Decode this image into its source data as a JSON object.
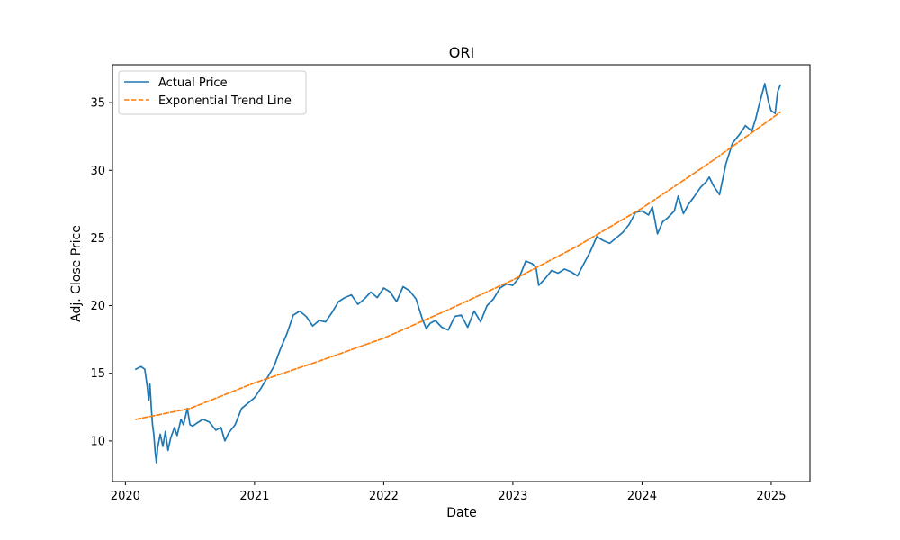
{
  "chart_data": {
    "type": "line",
    "title": "ORI",
    "xlabel": "Date",
    "ylabel": "Adj. Close Price",
    "xlim": [
      2019.9,
      2025.3
    ],
    "ylim": [
      7.0,
      37.8
    ],
    "x_ticks": [
      2020,
      2021,
      2022,
      2023,
      2024,
      2025
    ],
    "x_tick_labels": [
      "2020",
      "2021",
      "2022",
      "2023",
      "2024",
      "2025"
    ],
    "y_ticks": [
      10,
      15,
      20,
      25,
      30,
      35
    ],
    "y_tick_labels": [
      "10",
      "15",
      "20",
      "25",
      "30",
      "35"
    ],
    "grid": false,
    "legend_position": "top-left",
    "colors": {
      "actual": "#1f77b4",
      "trend": "#ff7f0e"
    },
    "series": [
      {
        "name": "Actual Price",
        "style": "solid",
        "color": "#1f77b4",
        "x": [
          2020.08,
          2020.1,
          2020.12,
          2020.15,
          2020.17,
          2020.18,
          2020.19,
          2020.2,
          2020.21,
          2020.22,
          2020.23,
          2020.24,
          2020.25,
          2020.27,
          2020.29,
          2020.31,
          2020.33,
          2020.35,
          2020.38,
          2020.4,
          2020.43,
          2020.45,
          2020.48,
          2020.5,
          2020.52,
          2020.55,
          2020.6,
          2020.65,
          2020.7,
          2020.74,
          2020.77,
          2020.8,
          2020.85,
          2020.9,
          2020.95,
          2021.0,
          2021.05,
          2021.1,
          2021.15,
          2021.2,
          2021.25,
          2021.3,
          2021.35,
          2021.4,
          2021.45,
          2021.5,
          2021.55,
          2021.6,
          2021.65,
          2021.7,
          2021.75,
          2021.8,
          2021.85,
          2021.9,
          2021.95,
          2022.0,
          2022.05,
          2022.1,
          2022.15,
          2022.2,
          2022.25,
          2022.3,
          2022.33,
          2022.36,
          2022.4,
          2022.45,
          2022.5,
          2022.55,
          2022.6,
          2022.65,
          2022.7,
          2022.75,
          2022.8,
          2022.85,
          2022.9,
          2022.95,
          2023.0,
          2023.05,
          2023.1,
          2023.15,
          2023.18,
          2023.2,
          2023.25,
          2023.3,
          2023.35,
          2023.4,
          2023.45,
          2023.5,
          2023.55,
          2023.6,
          2023.65,
          2023.7,
          2023.75,
          2023.8,
          2023.85,
          2023.9,
          2023.95,
          2024.0,
          2024.05,
          2024.08,
          2024.12,
          2024.16,
          2024.2,
          2024.25,
          2024.28,
          2024.32,
          2024.36,
          2024.4,
          2024.45,
          2024.5,
          2024.52,
          2024.55,
          2024.6,
          2024.65,
          2024.7,
          2024.75,
          2024.78,
          2024.8,
          2024.85,
          2024.88,
          2024.9,
          2024.95,
          2024.98,
          2025.0,
          2025.03,
          2025.05,
          2025.07
        ],
        "y": [
          15.3,
          15.4,
          15.5,
          15.3,
          14.0,
          13.0,
          14.2,
          12.5,
          11.2,
          10.5,
          9.2,
          8.4,
          9.5,
          10.5,
          9.6,
          10.7,
          9.3,
          10.2,
          11.0,
          10.4,
          11.6,
          11.2,
          12.4,
          11.2,
          11.1,
          11.3,
          11.6,
          11.4,
          10.8,
          11.0,
          10.0,
          10.6,
          11.2,
          12.4,
          12.8,
          13.2,
          13.9,
          14.7,
          15.5,
          16.8,
          17.9,
          19.3,
          19.6,
          19.2,
          18.5,
          18.9,
          18.8,
          19.5,
          20.3,
          20.6,
          20.8,
          20.1,
          20.5,
          21.0,
          20.6,
          21.3,
          21.0,
          20.3,
          21.4,
          21.1,
          20.5,
          19.0,
          18.3,
          18.7,
          18.9,
          18.4,
          18.2,
          19.2,
          19.3,
          18.4,
          19.6,
          18.8,
          20.0,
          20.5,
          21.3,
          21.6,
          21.5,
          22.1,
          23.3,
          23.1,
          22.8,
          21.5,
          22.0,
          22.6,
          22.4,
          22.7,
          22.5,
          22.2,
          23.1,
          24.0,
          25.1,
          24.8,
          24.6,
          25.0,
          25.4,
          26.0,
          26.9,
          27.0,
          26.7,
          27.3,
          25.3,
          26.2,
          26.5,
          27.0,
          28.1,
          26.8,
          27.5,
          28.0,
          28.7,
          29.2,
          29.5,
          28.9,
          28.2,
          30.5,
          32.0,
          32.6,
          33.0,
          33.3,
          32.9,
          33.8,
          34.6,
          36.4,
          35.0,
          34.4,
          34.2,
          35.8,
          36.3
        ]
      },
      {
        "name": "Exponential Trend Line",
        "style": "dashed",
        "color": "#ff7f0e",
        "x": [
          2020.08,
          2020.5,
          2021.0,
          2021.5,
          2022.0,
          2022.5,
          2023.0,
          2023.5,
          2024.0,
          2024.5,
          2025.0,
          2025.07
        ],
        "y": [
          11.6,
          12.4,
          14.3,
          15.9,
          17.6,
          19.7,
          21.9,
          24.4,
          27.2,
          30.4,
          33.8,
          34.3
        ]
      }
    ]
  }
}
